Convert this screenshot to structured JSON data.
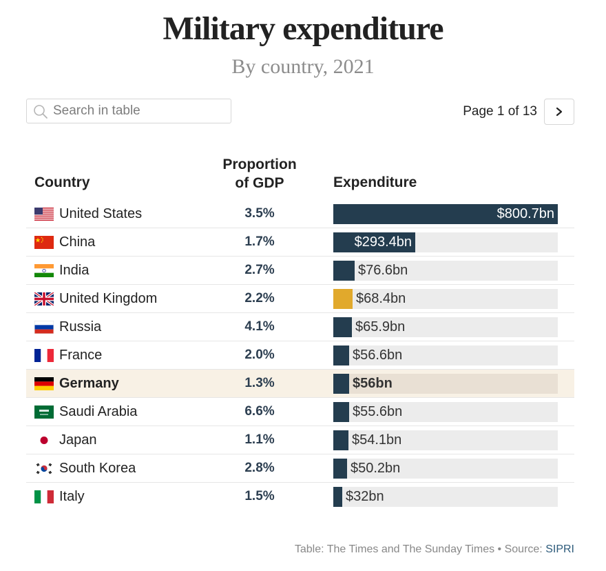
{
  "header": {
    "title": "Military expenditure",
    "subtitle": "By country, 2021"
  },
  "search": {
    "placeholder": "Search in table"
  },
  "pagination": {
    "label": "Page 1 of 13",
    "next_icon": "chevron-right-icon"
  },
  "table": {
    "columns": {
      "country": "Country",
      "proportion": "Proportion of GDP",
      "expenditure": "Expenditure"
    },
    "max_expenditure": 800.7,
    "rows": [
      {
        "country": "United States",
        "flag": "flag-us",
        "proportion": "3.5%",
        "expenditure": 800.7,
        "label": "$800.7bn"
      },
      {
        "country": "China",
        "flag": "flag-cn",
        "proportion": "1.7%",
        "expenditure": 293.4,
        "label": "$293.4bn"
      },
      {
        "country": "India",
        "flag": "flag-in",
        "proportion": "2.7%",
        "expenditure": 76.6,
        "label": "$76.6bn"
      },
      {
        "country": "United Kingdom",
        "flag": "flag-gb",
        "proportion": "2.2%",
        "expenditure": 68.4,
        "label": "$68.4bn",
        "bar_color": "#e1a92c"
      },
      {
        "country": "Russia",
        "flag": "flag-ru",
        "proportion": "4.1%",
        "expenditure": 65.9,
        "label": "$65.9bn"
      },
      {
        "country": "France",
        "flag": "flag-fr",
        "proportion": "2.0%",
        "expenditure": 56.6,
        "label": "$56.6bn"
      },
      {
        "country": "Germany",
        "flag": "flag-de",
        "proportion": "1.3%",
        "expenditure": 56,
        "label": "$56bn",
        "highlighted": true
      },
      {
        "country": "Saudi Arabia",
        "flag": "flag-sa",
        "proportion": "6.6%",
        "expenditure": 55.6,
        "label": "$55.6bn"
      },
      {
        "country": "Japan",
        "flag": "flag-jp",
        "proportion": "1.1%",
        "expenditure": 54.1,
        "label": "$54.1bn"
      },
      {
        "country": "South Korea",
        "flag": "flag-kr",
        "proportion": "2.8%",
        "expenditure": 50.2,
        "label": "$50.2bn"
      },
      {
        "country": "Italy",
        "flag": "flag-it",
        "proportion": "1.5%",
        "expenditure": 32,
        "label": "$32bn"
      }
    ]
  },
  "footer": {
    "credit": "Table: The Times and The Sunday Times",
    "separator": "•",
    "source_label": "Source:",
    "source": "SIPRI"
  },
  "colors": {
    "bar": "#243d4f",
    "highlight_bar": "#e1a92c",
    "track": "#ececec",
    "highlight_row": "#f8f1e5"
  }
}
